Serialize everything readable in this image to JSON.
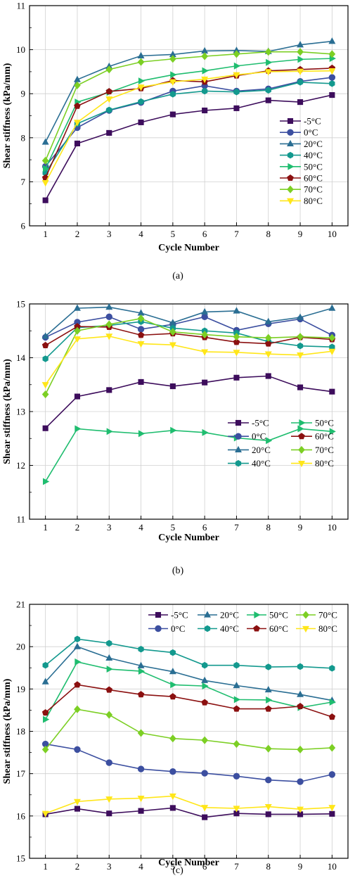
{
  "chart_data": [
    {
      "type": "line",
      "caption": "(a)",
      "xlabel": "Cycle Number",
      "ylabel": "Shear stiffness (kPa/mm)",
      "x": [
        1,
        2,
        3,
        4,
        5,
        6,
        7,
        8,
        9,
        10
      ],
      "xlim": [
        0.5,
        10.5
      ],
      "ylim": [
        6,
        11
      ],
      "yticks": [
        6,
        7,
        8,
        9,
        10,
        11
      ],
      "grid": true,
      "legend_position": "right",
      "legend_layout": "single-column",
      "series": [
        {
          "name": "-5°C",
          "color": "#3d0d5c",
          "marker": "square",
          "values": [
            6.58,
            7.87,
            8.11,
            8.35,
            8.53,
            8.62,
            8.67,
            8.85,
            8.81,
            8.97
          ]
        },
        {
          "name": "0°C",
          "color": "#3c4fa0",
          "marker": "circle",
          "values": [
            7.35,
            8.23,
            8.62,
            8.8,
            9.06,
            9.18,
            9.06,
            9.11,
            9.28,
            9.37
          ]
        },
        {
          "name": "20°C",
          "color": "#2a6e93",
          "marker": "triangle",
          "values": [
            7.9,
            9.32,
            9.62,
            9.86,
            9.89,
            9.97,
            9.98,
            9.96,
            10.11,
            10.19
          ]
        },
        {
          "name": "40°C",
          "color": "#13998e",
          "marker": "hexagon",
          "values": [
            7.2,
            8.32,
            8.63,
            8.82,
            8.99,
            9.06,
            9.04,
            9.08,
            9.26,
            9.23
          ]
        },
        {
          "name": "50°C",
          "color": "#1fbd6f",
          "marker": "triangle-right",
          "values": [
            7.3,
            8.81,
            9.03,
            9.29,
            9.43,
            9.52,
            9.63,
            9.71,
            9.78,
            9.8
          ]
        },
        {
          "name": "60°C",
          "color": "#8b1010",
          "marker": "pentagon",
          "values": [
            7.09,
            8.72,
            9.05,
            9.12,
            9.3,
            9.27,
            9.41,
            9.52,
            9.55,
            9.58
          ]
        },
        {
          "name": "70°C",
          "color": "#7ccf24",
          "marker": "diamond",
          "values": [
            7.48,
            9.19,
            9.55,
            9.72,
            9.79,
            9.85,
            9.9,
            9.95,
            9.95,
            9.9
          ]
        },
        {
          "name": "80°C",
          "color": "#ffe619",
          "marker": "triangle-down",
          "values": [
            6.98,
            8.35,
            8.88,
            9.15,
            9.27,
            9.33,
            9.43,
            9.5,
            9.51,
            9.52
          ]
        }
      ]
    },
    {
      "type": "line",
      "caption": "(b)",
      "xlabel": "Cycle Number",
      "ylabel": "Shear stiffness (kPa/mm)",
      "x": [
        1,
        2,
        3,
        4,
        5,
        6,
        7,
        8,
        9,
        10
      ],
      "xlim": [
        0.5,
        10.5
      ],
      "ylim": [
        11,
        15
      ],
      "yticks": [
        11,
        12,
        13,
        14,
        15
      ],
      "grid": true,
      "legend_position": "bottom-right",
      "legend_layout": "two-column",
      "series": [
        {
          "name": "-5°C",
          "color": "#3d0d5c",
          "marker": "square",
          "values": [
            12.69,
            13.28,
            13.4,
            13.55,
            13.47,
            13.54,
            13.63,
            13.66,
            13.45,
            13.37
          ]
        },
        {
          "name": "0°C",
          "color": "#3c4fa0",
          "marker": "circle",
          "values": [
            14.38,
            14.66,
            14.76,
            14.53,
            14.62,
            14.76,
            14.51,
            14.63,
            14.72,
            14.42
          ]
        },
        {
          "name": "20°C",
          "color": "#2a6e93",
          "marker": "triangle",
          "values": [
            14.4,
            14.92,
            14.94,
            14.83,
            14.65,
            14.85,
            14.87,
            14.67,
            14.75,
            14.92
          ]
        },
        {
          "name": "40°C",
          "color": "#13998e",
          "marker": "hexagon",
          "values": [
            13.98,
            14.56,
            14.6,
            14.67,
            14.55,
            14.5,
            14.46,
            14.3,
            14.22,
            14.2
          ]
        },
        {
          "name": "50°C",
          "color": "#1fbd6f",
          "marker": "triangle-right",
          "values": [
            11.7,
            12.68,
            12.63,
            12.59,
            12.65,
            12.61,
            12.51,
            12.46,
            12.68,
            12.63
          ]
        },
        {
          "name": "60°C",
          "color": "#8b1010",
          "marker": "pentagon",
          "values": [
            14.23,
            14.58,
            14.57,
            14.42,
            14.45,
            14.38,
            14.29,
            14.26,
            14.38,
            14.34
          ]
        },
        {
          "name": "70°C",
          "color": "#7ccf24",
          "marker": "diamond",
          "values": [
            13.32,
            14.5,
            14.62,
            14.73,
            14.48,
            14.43,
            14.39,
            14.37,
            14.39,
            14.37
          ]
        },
        {
          "name": "80°C",
          "color": "#ffe619",
          "marker": "triangle-down",
          "values": [
            13.5,
            14.35,
            14.4,
            14.26,
            14.24,
            14.11,
            14.1,
            14.07,
            14.05,
            14.12
          ]
        }
      ]
    },
    {
      "type": "line",
      "caption": "(c)",
      "xlabel": "Cycle Number",
      "ylabel": "Shear stiffness (kPa/mm)",
      "x": [
        1,
        2,
        3,
        4,
        5,
        6,
        7,
        8,
        9,
        10
      ],
      "xlim": [
        0.5,
        10.5
      ],
      "ylim": [
        15,
        21
      ],
      "yticks": [
        15,
        16,
        17,
        18,
        19,
        20,
        21
      ],
      "grid": true,
      "legend_position": "top-right",
      "legend_layout": "four-column",
      "series": [
        {
          "name": "-5°C",
          "color": "#3d0d5c",
          "marker": "square",
          "values": [
            16.04,
            16.17,
            16.06,
            16.12,
            16.19,
            15.97,
            16.06,
            16.04,
            16.04,
            16.05
          ]
        },
        {
          "name": "0°C",
          "color": "#3c4fa0",
          "marker": "circle",
          "values": [
            17.7,
            17.57,
            17.26,
            17.11,
            17.05,
            17.01,
            16.94,
            16.85,
            16.81,
            16.98
          ]
        },
        {
          "name": "20°C",
          "color": "#2a6e93",
          "marker": "triangle",
          "values": [
            19.17,
            20.0,
            19.73,
            19.55,
            19.41,
            19.2,
            19.08,
            18.98,
            18.87,
            18.73
          ]
        },
        {
          "name": "40°C",
          "color": "#13998e",
          "marker": "hexagon",
          "values": [
            19.56,
            20.18,
            20.08,
            19.94,
            19.86,
            19.56,
            19.56,
            19.52,
            19.53,
            19.49
          ]
        },
        {
          "name": "50°C",
          "color": "#1fbd6f",
          "marker": "triangle-right",
          "values": [
            18.28,
            19.64,
            19.47,
            19.42,
            19.1,
            19.07,
            18.75,
            18.74,
            18.56,
            18.69
          ]
        },
        {
          "name": "60°C",
          "color": "#8b1010",
          "marker": "pentagon",
          "values": [
            18.44,
            19.1,
            18.98,
            18.87,
            18.82,
            18.68,
            18.53,
            18.53,
            18.59,
            18.34
          ]
        },
        {
          "name": "70°C",
          "color": "#7ccf24",
          "marker": "diamond",
          "values": [
            17.57,
            18.52,
            18.39,
            17.96,
            17.83,
            17.79,
            17.7,
            17.59,
            17.57,
            17.61
          ]
        },
        {
          "name": "80°C",
          "color": "#ffe619",
          "marker": "triangle-down",
          "values": [
            16.06,
            16.34,
            16.4,
            16.42,
            16.47,
            16.2,
            16.18,
            16.22,
            16.16,
            16.2
          ]
        }
      ]
    }
  ]
}
